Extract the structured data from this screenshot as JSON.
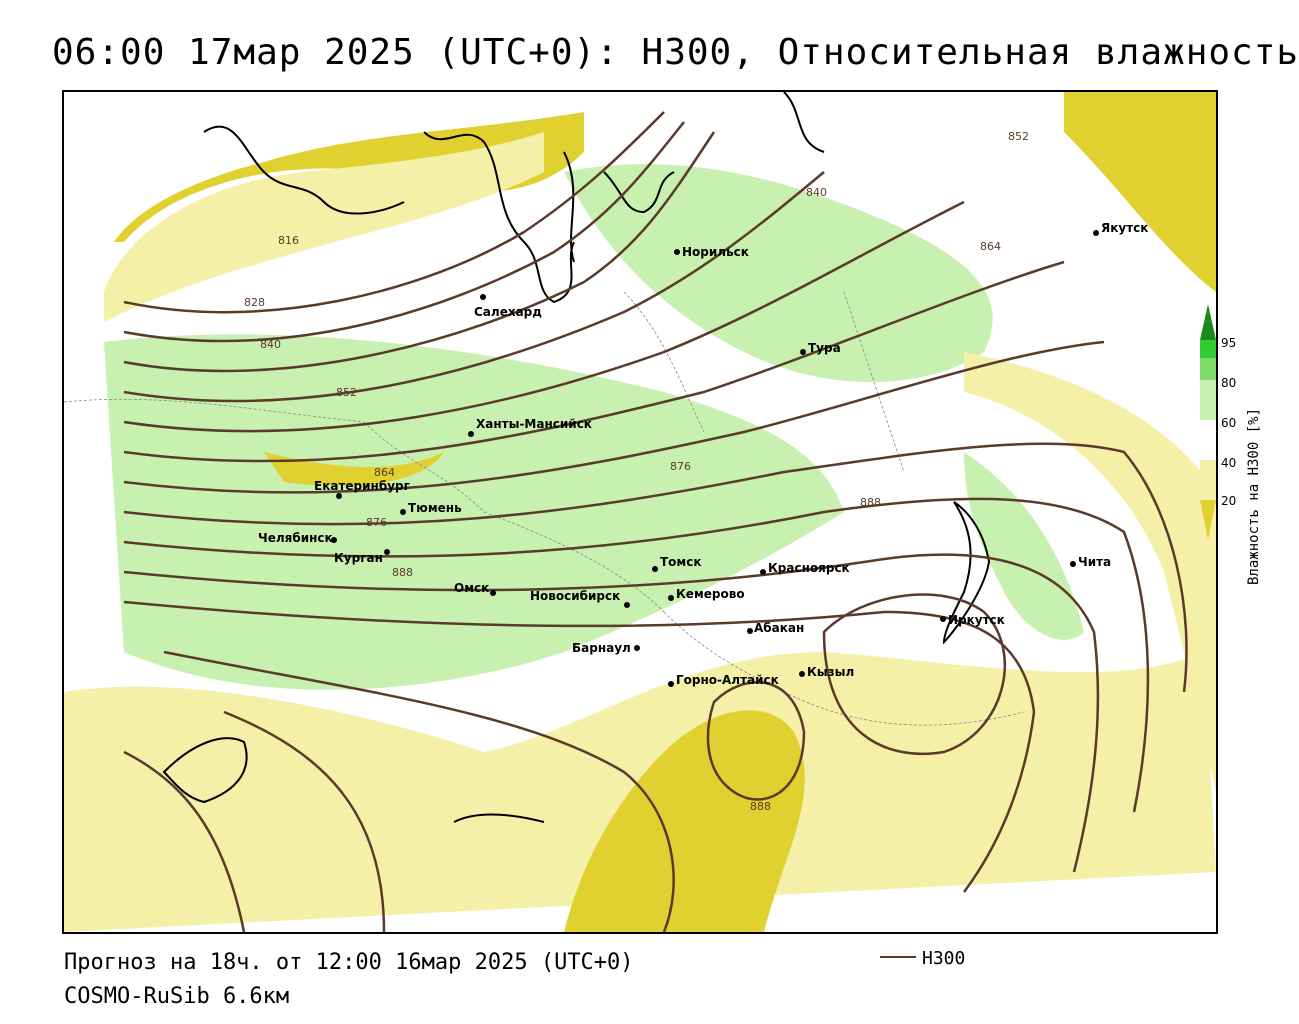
{
  "header": {
    "title": "06:00 17мар 2025 (UTC+0): H300, Относительная влажность"
  },
  "footer": {
    "forecast": "Прогноз на 18ч. от 12:00 16мар 2025 (UTC+0)",
    "model": "COSMO-RuSib 6.6км",
    "legend_label": "H300"
  },
  "colorbar": {
    "title": "Влажность на H300 [%]",
    "ticks": [
      "95",
      "80",
      "60",
      "40",
      "20"
    ],
    "colors": {
      "high": "#1a8a1a",
      "mid": "#33cc33",
      "low_green": "#c8f0b0",
      "white": "#ffffff",
      "pale_yellow": "#f5f0a8",
      "yellow": "#e0d030"
    }
  },
  "map": {
    "isoline_color": "#5a3a2a",
    "isoline_labels": [
      "816",
      "828",
      "840",
      "852",
      "864",
      "876",
      "888",
      "840",
      "852",
      "864",
      "876",
      "888",
      "888"
    ],
    "cities": [
      "Норильск",
      "Якутск",
      "Салехард",
      "Тура",
      "Ханты-Мансийск",
      "Екатеринбург",
      "Тюмень",
      "Челябинск",
      "Курган",
      "Омск",
      "Новосибирск",
      "Томск",
      "Кемерово",
      "Красноярск",
      "Барнаул",
      "Абакан",
      "Иркутск",
      "Чита",
      "Горно-Алтайск",
      "Кызыл"
    ]
  }
}
